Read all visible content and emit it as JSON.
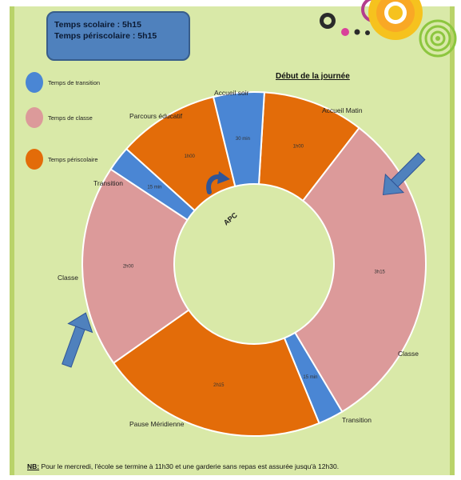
{
  "header": {
    "line1": "Temps scolaire : 5h15",
    "line2": "Temps périscolaire : 5h15"
  },
  "start_label": "Début de la journée",
  "legend": [
    {
      "label": "Temps de transition",
      "color": "#4a86d4"
    },
    {
      "label": "Temps de classe",
      "color": "#dc9a9a"
    },
    {
      "label": "Temps périscolaire",
      "color": "#e36c09"
    }
  ],
  "center_label": "APC",
  "segments": [
    {
      "name": "Accueil Matin",
      "duration": "1h00",
      "minutes": 60,
      "kind": "periscolaire",
      "color": "#e36c09"
    },
    {
      "name": "Classe",
      "duration": "3h15",
      "minutes": 195,
      "kind": "classe",
      "color": "#dc9a9a"
    },
    {
      "name": "Transition",
      "duration": "15 min",
      "minutes": 15,
      "kind": "transition",
      "color": "#4a86d4"
    },
    {
      "name": "Pause Méridienne",
      "duration": "2h15",
      "minutes": 135,
      "kind": "periscolaire",
      "color": "#e36c09"
    },
    {
      "name": "Classe",
      "duration": "2h00",
      "minutes": 120,
      "kind": "classe",
      "color": "#dc9a9a"
    },
    {
      "name": "Transition",
      "duration": "15 min",
      "minutes": 15,
      "kind": "transition",
      "color": "#4a86d4"
    },
    {
      "name": "Parcours éducatif",
      "duration": "1h00",
      "minutes": 60,
      "kind": "periscolaire",
      "color": "#e36c09"
    },
    {
      "name": "Accueil soir",
      "duration": "30 min",
      "minutes": 30,
      "kind": "transition",
      "color": "#4a86d4"
    }
  ],
  "footnote": {
    "prefix": "NB:",
    "text": " Pour le mercredi, l'école se termine à 11h30 et une garderie sans repas est assurée jusqu'à 12h30."
  }
}
